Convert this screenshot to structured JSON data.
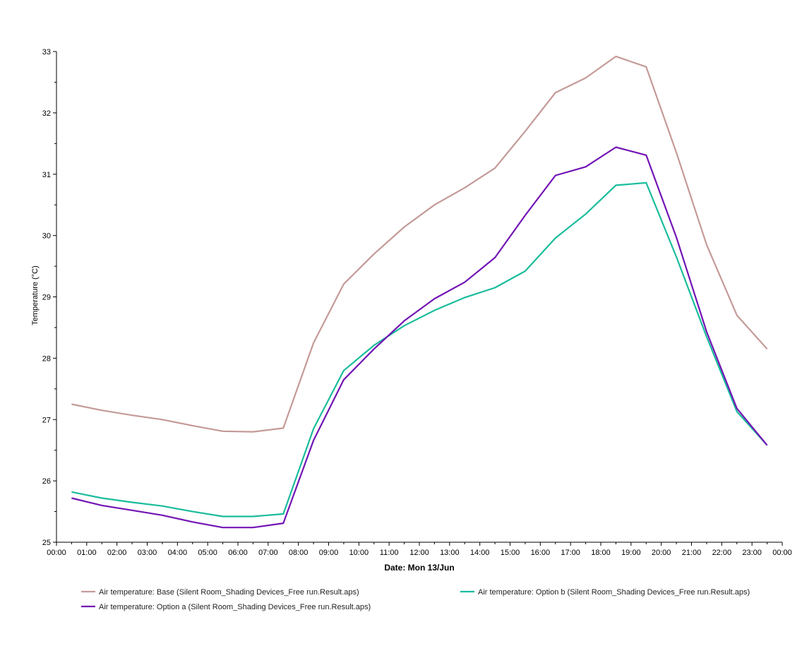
{
  "chart_data": {
    "type": "line",
    "xlabel": "Date: Mon 13/Jun",
    "ylabel": "Temperature (°C)",
    "ylim": [
      25,
      33
    ],
    "xlim": [
      "00:00",
      "00:00"
    ],
    "x_ticks": [
      "00:00",
      "01:00",
      "02:00",
      "03:00",
      "04:00",
      "05:00",
      "06:00",
      "07:00",
      "08:00",
      "09:00",
      "10:00",
      "11:00",
      "12:00",
      "13:00",
      "14:00",
      "15:00",
      "16:00",
      "17:00",
      "18:00",
      "19:00",
      "20:00",
      "21:00",
      "22:00",
      "23:00",
      "00:00"
    ],
    "y_ticks": [
      "25",
      "26",
      "27",
      "28",
      "29",
      "30",
      "31",
      "32",
      "33"
    ],
    "x": [
      "00:30",
      "01:30",
      "02:30",
      "03:30",
      "04:30",
      "05:30",
      "06:30",
      "07:30",
      "08:30",
      "09:30",
      "10:30",
      "11:30",
      "12:30",
      "13:30",
      "14:30",
      "15:30",
      "16:30",
      "17:30",
      "18:30",
      "19:30",
      "20:30",
      "21:30",
      "22:30",
      "23:30"
    ],
    "grid": false,
    "legend_position": "bottom",
    "series": [
      {
        "name": "Air temperature: Base (Silent Room_Shading Devices_Free run.Result.aps)",
        "color": "#c49a98",
        "values": [
          27.25,
          27.15,
          27.07,
          27.0,
          26.9,
          26.81,
          26.8,
          26.86,
          28.25,
          29.21,
          29.7,
          30.14,
          30.5,
          30.78,
          31.1,
          31.7,
          32.33,
          32.57,
          32.92,
          32.75,
          31.35,
          29.85,
          28.7,
          28.15
        ]
      },
      {
        "name": "Air temperature: Option b (Silent Room_Shading Devices_Free run.Result.aps)",
        "color": "#1abc9c",
        "values": [
          25.82,
          25.72,
          25.65,
          25.59,
          25.5,
          25.42,
          25.42,
          25.46,
          26.85,
          27.8,
          28.21,
          28.53,
          28.78,
          28.99,
          29.15,
          29.42,
          29.96,
          30.35,
          30.82,
          30.86,
          29.65,
          28.35,
          27.13,
          26.58
        ]
      },
      {
        "name": "Air temperature: Option a (Silent Room_Shading Devices_Free run.Result.aps)",
        "color": "#7214b4",
        "values": [
          25.72,
          25.6,
          25.52,
          25.44,
          25.33,
          25.24,
          25.24,
          25.31,
          26.66,
          27.65,
          28.15,
          28.61,
          28.97,
          29.24,
          29.64,
          30.33,
          30.98,
          31.12,
          31.44,
          31.31,
          29.97,
          28.43,
          27.18,
          26.58
        ]
      }
    ]
  }
}
